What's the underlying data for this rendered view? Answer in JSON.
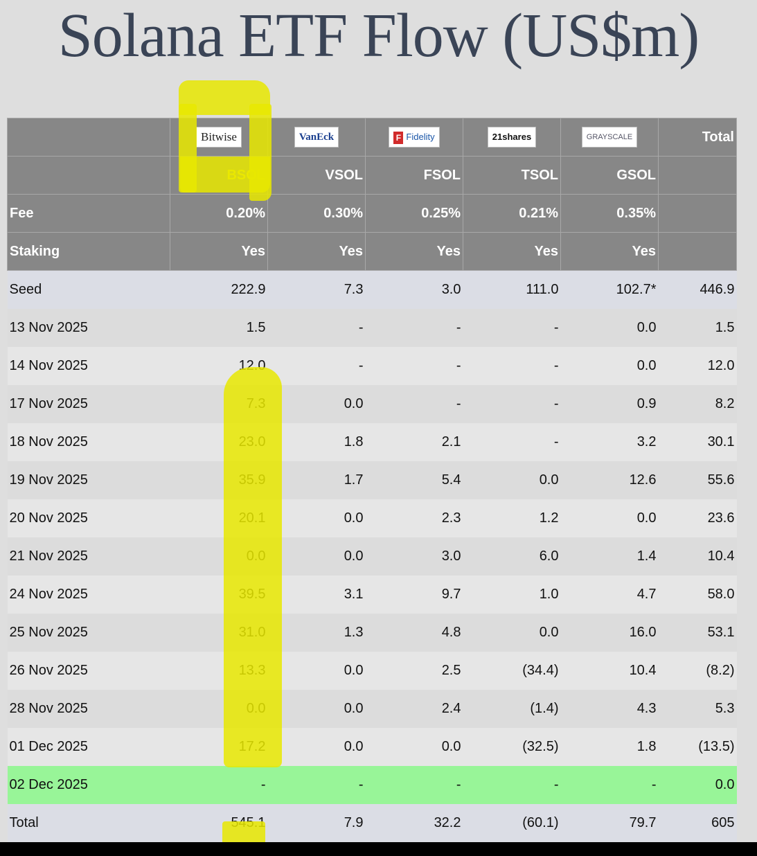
{
  "title": "Solana ETF Flow (US$m)",
  "header": {
    "issuers": [
      {
        "logo": "Bitwise"
      },
      {
        "logo": "VanEck"
      },
      {
        "logo": "Fidelity",
        "logo_badge": "F"
      },
      {
        "logo": "21shares"
      },
      {
        "logo": "GRAYSCALE"
      }
    ],
    "total_label": "Total",
    "tickers": [
      "BSOL",
      "VSOL",
      "FSOL",
      "TSOL",
      "GSOL"
    ],
    "fee_label": "Fee",
    "fees": [
      "0.20%",
      "0.30%",
      "0.25%",
      "0.21%",
      "0.35%"
    ],
    "staking_label": "Staking",
    "staking": [
      "Yes",
      "Yes",
      "Yes",
      "Yes",
      "Yes"
    ]
  },
  "colors": {
    "highlight": "#e8e800",
    "negative": "#e00000",
    "today_row": "#98f598",
    "header_bg": "#878787"
  },
  "chart_data": {
    "type": "table",
    "title": "Solana ETF Flow (US$m)",
    "columns": [
      "",
      "BSOL",
      "VSOL",
      "FSOL",
      "TSOL",
      "GSOL",
      "Total"
    ],
    "rows": [
      [
        "Seed",
        "222.9",
        "7.3",
        "3.0",
        "111.0",
        "102.7*",
        "446.9"
      ],
      [
        "13 Nov 2025",
        "1.5",
        "-",
        "-",
        "-",
        "0.0",
        "1.5"
      ],
      [
        "14 Nov 2025",
        "12.0",
        "-",
        "-",
        "-",
        "0.0",
        "12.0"
      ],
      [
        "17 Nov 2025",
        "7.3",
        "0.0",
        "-",
        "-",
        "0.9",
        "8.2"
      ],
      [
        "18 Nov 2025",
        "23.0",
        "1.8",
        "2.1",
        "-",
        "3.2",
        "30.1"
      ],
      [
        "19 Nov 2025",
        "35.9",
        "1.7",
        "5.4",
        "0.0",
        "12.6",
        "55.6"
      ],
      [
        "20 Nov 2025",
        "20.1",
        "0.0",
        "2.3",
        "1.2",
        "0.0",
        "23.6"
      ],
      [
        "21 Nov 2025",
        "0.0",
        "0.0",
        "3.0",
        "6.0",
        "1.4",
        "10.4"
      ],
      [
        "24 Nov 2025",
        "39.5",
        "3.1",
        "9.7",
        "1.0",
        "4.7",
        "58.0"
      ],
      [
        "25 Nov 2025",
        "31.0",
        "1.3",
        "4.8",
        "0.0",
        "16.0",
        "53.1"
      ],
      [
        "26 Nov 2025",
        "13.3",
        "0.0",
        "2.5",
        "(34.4)",
        "10.4",
        "(8.2)"
      ],
      [
        "28 Nov 2025",
        "0.0",
        "0.0",
        "2.4",
        "(1.4)",
        "4.3",
        "5.3"
      ],
      [
        "01 Dec 2025",
        "17.2",
        "0.0",
        "0.0",
        "(32.5)",
        "1.8",
        "(13.5)"
      ],
      [
        "02 Dec 2025",
        "-",
        "-",
        "-",
        "-",
        "-",
        "0.0"
      ],
      [
        "Total",
        "545.1",
        "7.9",
        "32.2",
        "(60.1)",
        "79.7",
        "605"
      ]
    ]
  }
}
